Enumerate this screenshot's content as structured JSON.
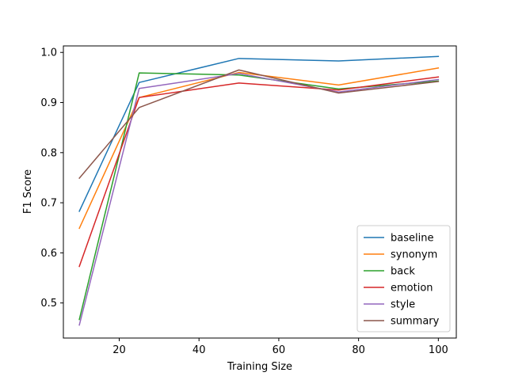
{
  "chart_data": {
    "type": "line",
    "title": "",
    "xlabel": "Training Size",
    "ylabel": "F1 Score",
    "x": [
      10,
      25,
      50,
      75,
      100
    ],
    "xlim": [
      6.0,
      104.5
    ],
    "ylim": [
      0.43,
      1.013
    ],
    "xticks": [
      20,
      40,
      60,
      80,
      100
    ],
    "yticks": [
      0.5,
      0.6,
      0.7,
      0.8,
      0.9,
      1.0
    ],
    "ytick_labels": [
      "0.5",
      "0.6",
      "0.7",
      "0.8",
      "0.9",
      "1.0"
    ],
    "grid": false,
    "legend_position": "lower-right",
    "series": [
      {
        "name": "baseline",
        "color": "#1f77b4",
        "values": [
          0.683,
          0.94,
          0.988,
          0.983,
          0.992
        ]
      },
      {
        "name": "synonym",
        "color": "#ff7f0e",
        "values": [
          0.649,
          0.91,
          0.96,
          0.935,
          0.969
        ]
      },
      {
        "name": "back",
        "color": "#2ca02c",
        "values": [
          0.467,
          0.959,
          0.955,
          0.927,
          0.943
        ]
      },
      {
        "name": "emotion",
        "color": "#d62728",
        "values": [
          0.573,
          0.91,
          0.939,
          0.925,
          0.951
        ]
      },
      {
        "name": "style",
        "color": "#9467bd",
        "values": [
          0.456,
          0.928,
          0.958,
          0.921,
          0.946
        ]
      },
      {
        "name": "summary",
        "color": "#8c564b",
        "values": [
          0.749,
          0.89,
          0.965,
          0.919,
          0.942
        ]
      }
    ]
  }
}
